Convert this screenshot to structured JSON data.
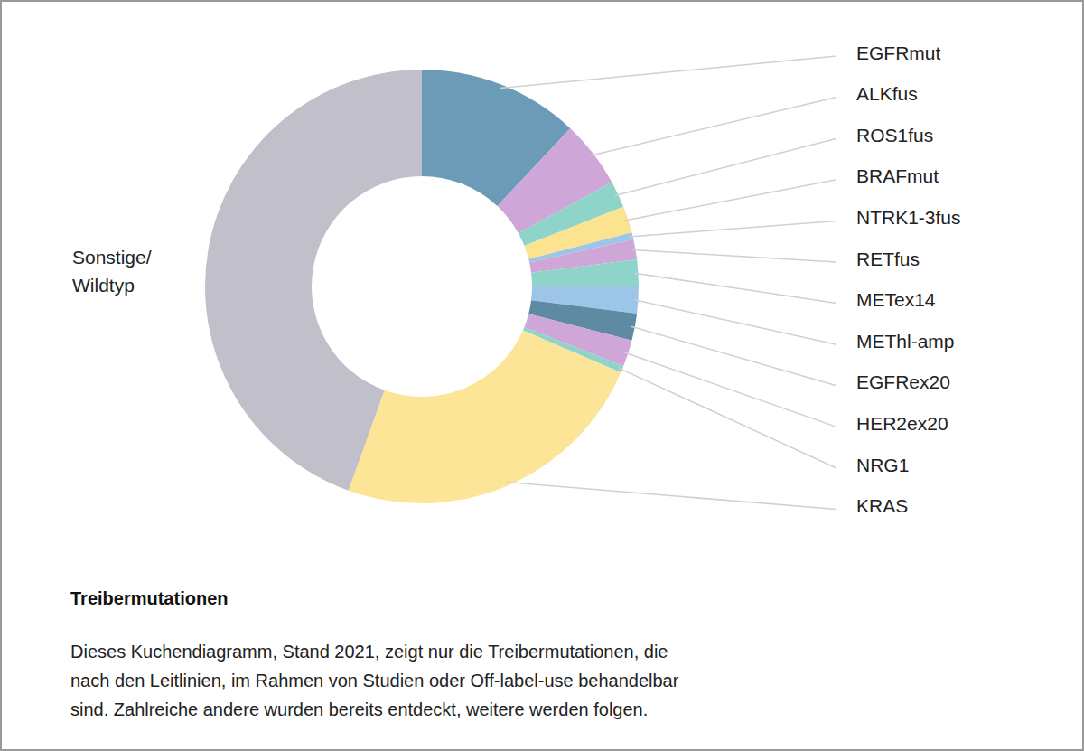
{
  "chart_data": {
    "type": "pie",
    "title": "Treibermutationen",
    "caption": [
      "Dieses Kuchendiagramm, Stand 2021, zeigt nur die Treibermutationen, die",
      "nach den Leitlinien, im Rahmen von Studien oder Off-label-use behandelbar",
      "sind. Zahlreiche andere wurden bereits entdeckt, weitere werden folgen."
    ],
    "categories": [
      "EGFRmut",
      "ALKfus",
      "ROS1fus",
      "BRAFmut",
      "NTRK1-3fus",
      "RETfus",
      "METex14",
      "METhl-amp",
      "EGFRex20",
      "HER2ex20",
      "NRG1",
      "KRAS",
      "Sonstige/\nWildtyp"
    ],
    "values": [
      12,
      5,
      2,
      2,
      0.5,
      1.5,
      2,
      2,
      2,
      2,
      0.5,
      24,
      44.5
    ],
    "colors": [
      "#6b9bb7",
      "#cfa6d8",
      "#8fd4c9",
      "#fce38f",
      "#9dc5e8",
      "#cfa6d8",
      "#8fd4c9",
      "#9dc5e8",
      "#5f8aa3",
      "#cfa6d8",
      "#8fd4c9",
      "#fde597",
      "#c1c0ca"
    ]
  }
}
